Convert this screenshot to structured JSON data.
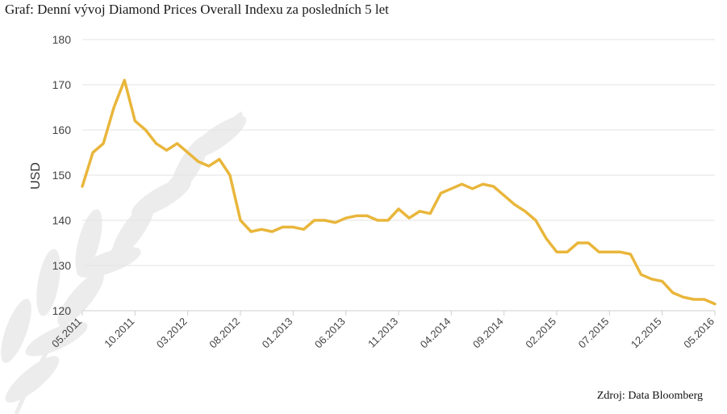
{
  "title": "Graf: Denní vývoj Diamond Prices Overall Indexu za posledních 5 let",
  "source": "Zdroj: Data Bloomberg",
  "colors": {
    "line": "#e9b63b",
    "grid": "#e3e3e3",
    "watermark": "#ececec"
  },
  "chart_data": {
    "type": "line",
    "title": "Graf: Denní vývoj Diamond Prices Overall Indexu za posledních 5 let",
    "xlabel": "",
    "ylabel": "USD",
    "ylim": [
      120,
      180
    ],
    "yticks": [
      120,
      130,
      140,
      150,
      160,
      170,
      180
    ],
    "xlim": [
      "2011-05",
      "2016-05"
    ],
    "xticks": [
      "05.2011",
      "10.2011",
      "03.2012",
      "08.2012",
      "01.2013",
      "06.2013",
      "11.2013",
      "04.2014",
      "09.2014",
      "02.2015",
      "07.2015",
      "12.2015",
      "05.2016"
    ],
    "grid": "horizontal",
    "legend": "none",
    "x": [
      "05.2011",
      "06.2011",
      "07.2011",
      "08.2011",
      "09.2011",
      "10.2011",
      "11.2011",
      "12.2011",
      "01.2012",
      "02.2012",
      "03.2012",
      "04.2012",
      "05.2012",
      "06.2012",
      "07.2012",
      "08.2012",
      "09.2012",
      "10.2012",
      "11.2012",
      "12.2012",
      "01.2013",
      "02.2013",
      "03.2013",
      "04.2013",
      "05.2013",
      "06.2013",
      "07.2013",
      "08.2013",
      "09.2013",
      "10.2013",
      "11.2013",
      "12.2013",
      "01.2014",
      "02.2014",
      "03.2014",
      "04.2014",
      "05.2014",
      "06.2014",
      "07.2014",
      "08.2014",
      "09.2014",
      "10.2014",
      "11.2014",
      "12.2014",
      "01.2015",
      "02.2015",
      "03.2015",
      "04.2015",
      "05.2015",
      "06.2015",
      "07.2015",
      "08.2015",
      "09.2015",
      "10.2015",
      "11.2015",
      "12.2015",
      "01.2016",
      "02.2016",
      "03.2016",
      "04.2016",
      "05.2016"
    ],
    "series": [
      {
        "values": [
          147.5,
          155,
          157,
          165,
          171,
          162,
          160,
          157,
          155.5,
          157,
          155,
          153,
          152,
          153.5,
          150,
          140,
          137.5,
          138,
          137.5,
          138.5,
          138.5,
          138,
          140,
          140,
          139.5,
          140.5,
          141,
          141,
          140,
          140,
          142.5,
          140.5,
          142,
          141.5,
          146,
          147,
          148,
          147,
          148,
          147.5,
          145.5,
          143.5,
          142,
          140,
          136,
          133,
          133,
          135,
          135,
          133,
          133,
          133,
          132.5,
          128,
          127,
          126.5,
          124,
          123,
          122.5,
          122.5,
          121.5
        ]
      }
    ]
  }
}
